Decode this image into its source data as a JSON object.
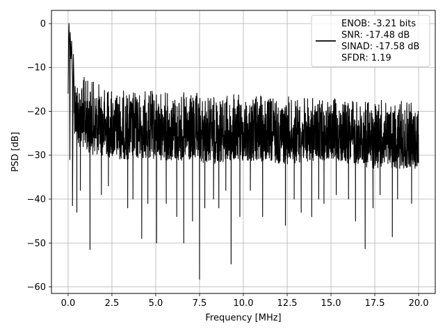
{
  "chart_data": {
    "type": "line",
    "title": "",
    "xlabel": "Frequency [MHz]",
    "ylabel": "PSD [dB]",
    "xlim": [
      -0.95,
      20.95
    ],
    "ylim": [
      -61.5,
      3
    ],
    "grid": true,
    "x_ticks": [
      0.0,
      2.5,
      5.0,
      7.5,
      10.0,
      12.5,
      15.0,
      17.5,
      20.0
    ],
    "x_tick_labels": [
      "0.0",
      "2.5",
      "5.0",
      "7.5",
      "10.0",
      "12.5",
      "15.0",
      "17.5",
      "20.0"
    ],
    "y_ticks": [
      0,
      -10,
      -20,
      -30,
      -40,
      -50,
      -60
    ],
    "y_tick_labels": [
      "0",
      "−10",
      "−20",
      "−30",
      "−40",
      "−50",
      "−60"
    ],
    "legend": {
      "placement": "top-right",
      "entries": [
        "ENOB: -3.21 bits",
        "SNR: -17.48 dB",
        "SINAD: -17.58 dB",
        "SFDR: 1.19"
      ]
    },
    "series": [
      {
        "color": "#000000",
        "band_top": [
          [
            0.0,
            -4
          ],
          [
            0.5,
            -11
          ],
          [
            1.5,
            -13
          ],
          [
            3.0,
            -15
          ],
          [
            5.0,
            -15
          ],
          [
            8.0,
            -16
          ],
          [
            10.0,
            -16
          ],
          [
            12.5,
            -16.5
          ],
          [
            15.0,
            -17
          ],
          [
            17.0,
            -17
          ],
          [
            20.0,
            -18
          ]
        ],
        "band_bottom": [
          [
            0.0,
            -16
          ],
          [
            0.5,
            -28
          ],
          [
            1.5,
            -30
          ],
          [
            3.0,
            -31
          ],
          [
            5.0,
            -31
          ],
          [
            8.0,
            -32
          ],
          [
            10.0,
            -31.5
          ],
          [
            12.5,
            -32
          ],
          [
            15.0,
            -31
          ],
          [
            17.0,
            -33
          ],
          [
            20.0,
            -33
          ]
        ],
        "initial_peak": [
          [
            0.0,
            -16
          ],
          [
            0.03,
            -3
          ],
          [
            0.05,
            0
          ],
          [
            0.08,
            -5
          ],
          [
            0.12,
            -2
          ],
          [
            0.16,
            -8
          ],
          [
            0.2,
            -4
          ],
          [
            0.25,
            -13
          ],
          [
            0.3,
            -7
          ],
          [
            0.35,
            -16
          ]
        ],
        "dips": [
          [
            0.1,
            -31
          ],
          [
            0.25,
            -41.5
          ],
          [
            0.5,
            -43
          ],
          [
            0.7,
            -38
          ],
          [
            1.25,
            -51.5
          ],
          [
            1.9,
            -39
          ],
          [
            2.3,
            -37
          ],
          [
            3.4,
            -42
          ],
          [
            3.7,
            -40
          ],
          [
            4.2,
            -49
          ],
          [
            4.55,
            -41
          ],
          [
            5.05,
            -50
          ],
          [
            5.6,
            -41
          ],
          [
            6.2,
            -44
          ],
          [
            6.6,
            -50
          ],
          [
            7.1,
            -45
          ],
          [
            7.5,
            -58.3
          ],
          [
            7.8,
            -42
          ],
          [
            8.3,
            -40
          ],
          [
            8.6,
            -42
          ],
          [
            9.0,
            -38
          ],
          [
            9.3,
            -54.8
          ],
          [
            9.8,
            -44
          ],
          [
            10.4,
            -38
          ],
          [
            11.1,
            -44
          ],
          [
            12.4,
            -46
          ],
          [
            12.9,
            -40
          ],
          [
            13.3,
            -43
          ],
          [
            13.9,
            -44
          ],
          [
            14.3,
            -40
          ],
          [
            14.6,
            -41
          ],
          [
            15.3,
            -39
          ],
          [
            16.0,
            -40
          ],
          [
            16.4,
            -45
          ],
          [
            16.95,
            -51.3
          ],
          [
            17.4,
            -42
          ],
          [
            17.8,
            -39
          ],
          [
            18.5,
            -48.6
          ],
          [
            18.8,
            -40
          ],
          [
            19.6,
            -41
          ]
        ]
      }
    ]
  }
}
